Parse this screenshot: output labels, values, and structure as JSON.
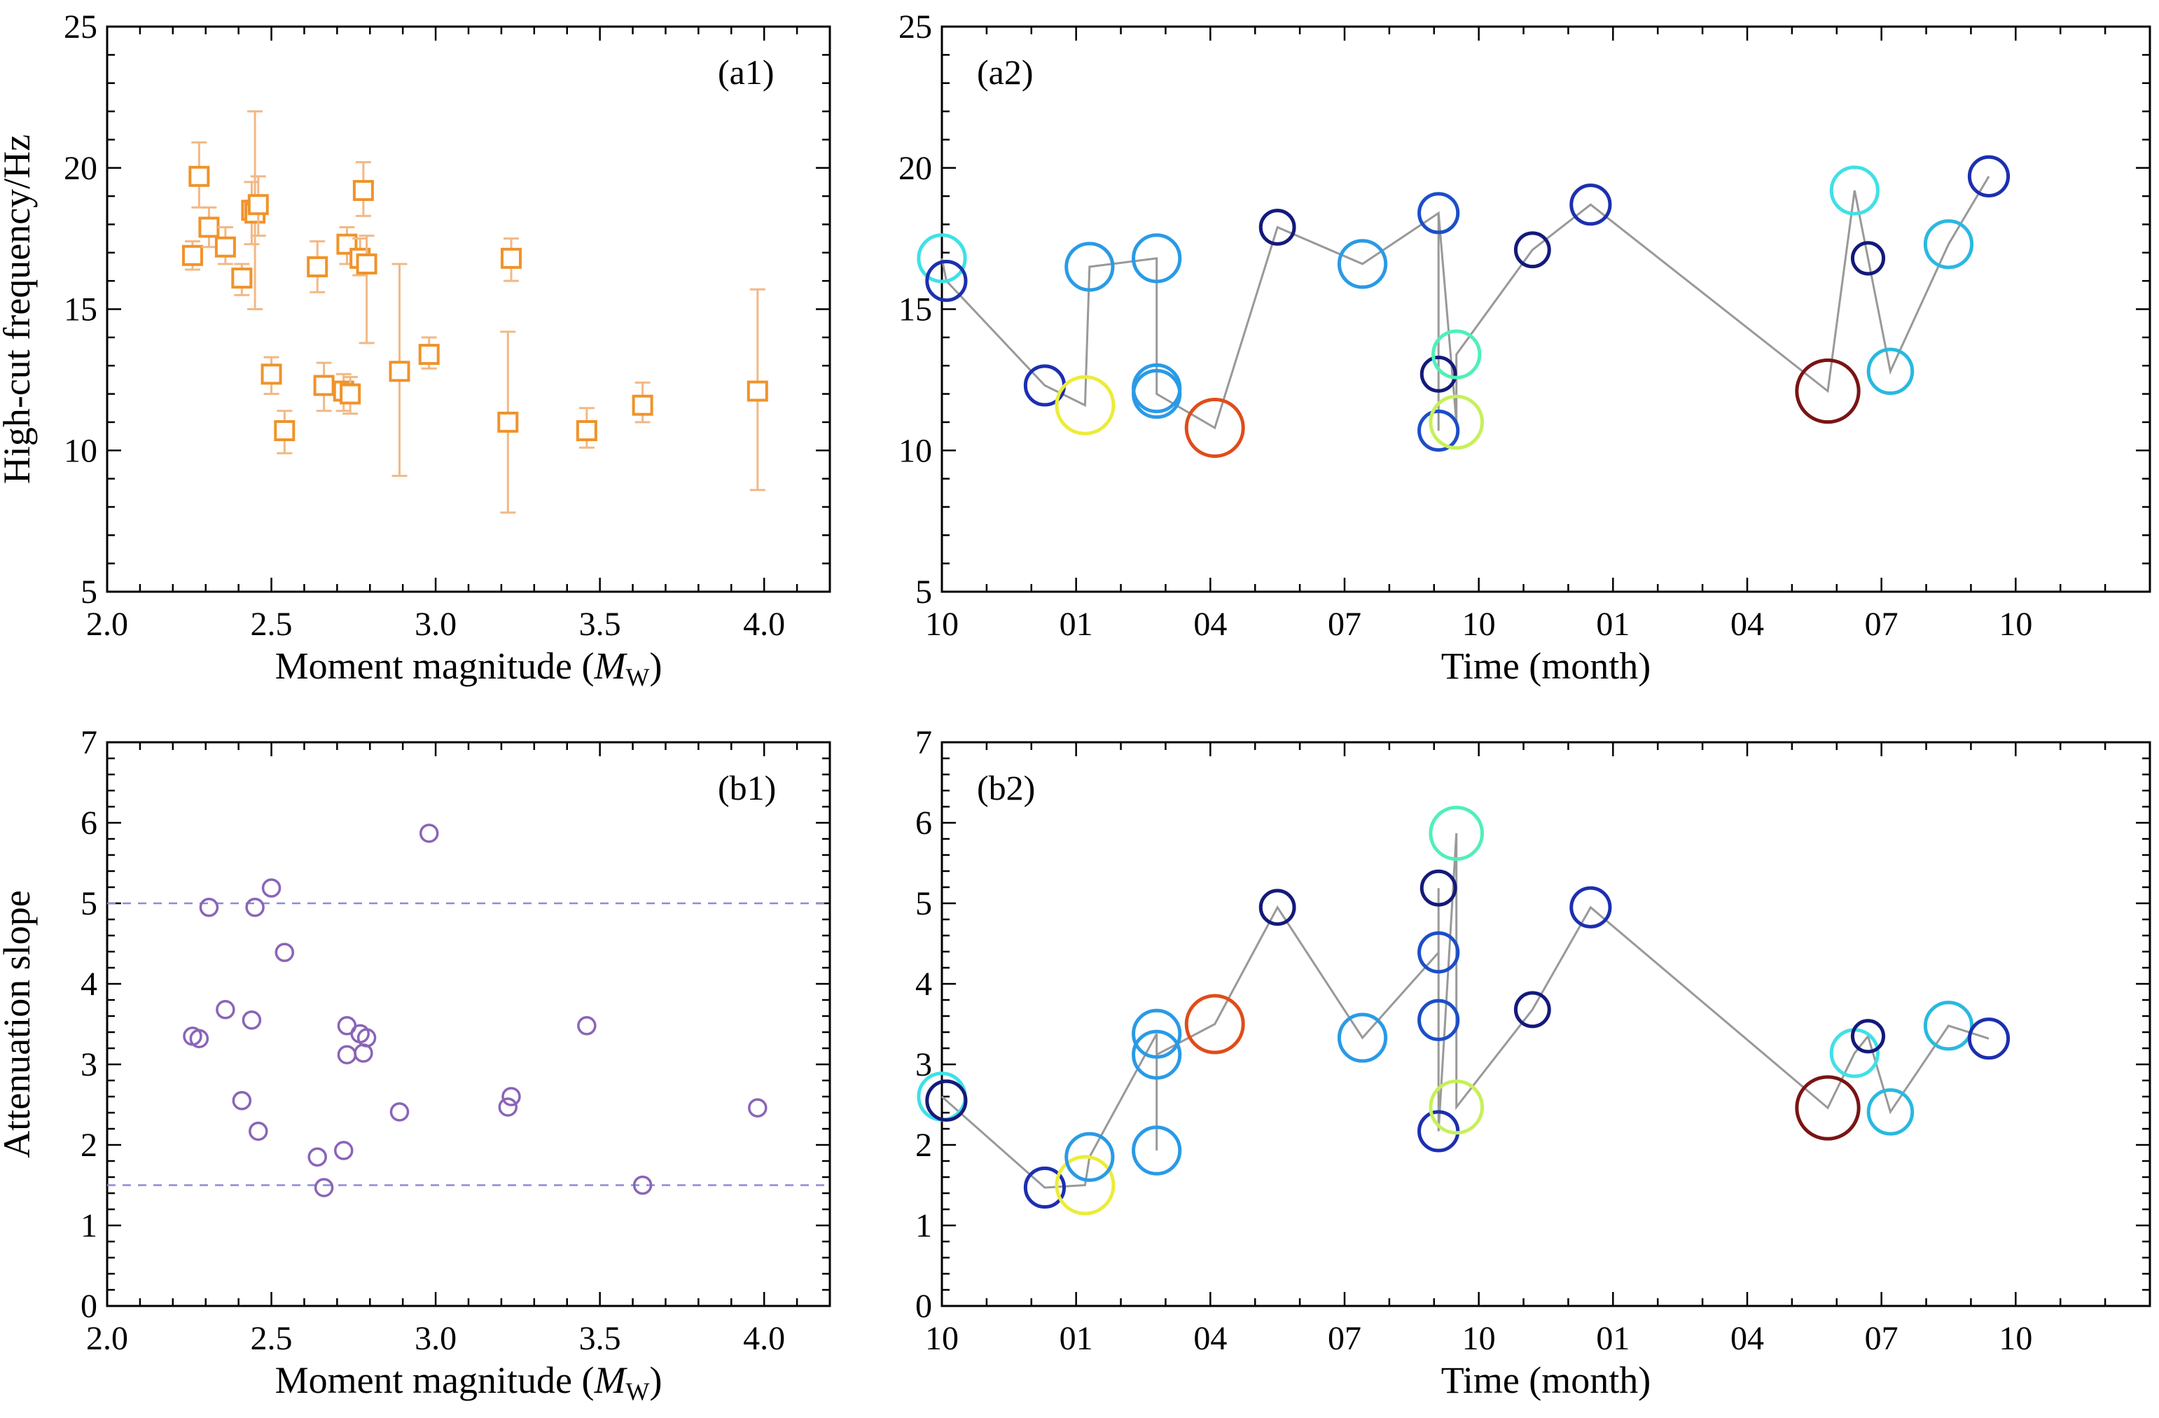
{
  "chart_data": [
    {
      "id": "a1",
      "type": "scatter",
      "panel_label": "(a1)",
      "xlabel": "Moment magnitude (M",
      "xlabel_sub": "W",
      "xlabel_close": ")",
      "ylabel": "High-cut frequency/Hz",
      "xlim": [
        2.0,
        4.2
      ],
      "ylim": [
        5,
        25
      ],
      "xticks": [
        "2.0",
        "2.5",
        "3.0",
        "3.5",
        "4.0"
      ],
      "yticks": [
        "5",
        "10",
        "15",
        "20",
        "25"
      ],
      "marker": "square",
      "color": "#f0932a",
      "errorbar_color": "#f2b885",
      "points": [
        {
          "x": 2.26,
          "y": 16.9,
          "lo": 16.4,
          "hi": 17.4
        },
        {
          "x": 2.28,
          "y": 19.7,
          "lo": 18.6,
          "hi": 20.9
        },
        {
          "x": 2.31,
          "y": 17.9,
          "lo": 17.2,
          "hi": 18.6
        },
        {
          "x": 2.36,
          "y": 17.2,
          "lo": 16.6,
          "hi": 17.9
        },
        {
          "x": 2.41,
          "y": 16.1,
          "lo": 15.5,
          "hi": 16.6
        },
        {
          "x": 2.44,
          "y": 18.5,
          "lo": 17.3,
          "hi": 19.5
        },
        {
          "x": 2.45,
          "y": 18.4,
          "lo": 15.0,
          "hi": 22.0
        },
        {
          "x": 2.46,
          "y": 18.7,
          "lo": 17.6,
          "hi": 19.7
        },
        {
          "x": 2.5,
          "y": 12.7,
          "lo": 12.0,
          "hi": 13.3
        },
        {
          "x": 2.54,
          "y": 10.7,
          "lo": 9.9,
          "hi": 11.4
        },
        {
          "x": 2.64,
          "y": 16.5,
          "lo": 15.6,
          "hi": 17.4
        },
        {
          "x": 2.66,
          "y": 12.3,
          "lo": 11.4,
          "hi": 13.1
        },
        {
          "x": 2.72,
          "y": 12.1,
          "lo": 11.4,
          "hi": 12.7
        },
        {
          "x": 2.73,
          "y": 17.3,
          "lo": 16.6,
          "hi": 17.9
        },
        {
          "x": 2.74,
          "y": 12.0,
          "lo": 11.3,
          "hi": 12.6
        },
        {
          "x": 2.77,
          "y": 16.8,
          "lo": 16.2,
          "hi": 17.5
        },
        {
          "x": 2.78,
          "y": 19.2,
          "lo": 18.3,
          "hi": 20.2
        },
        {
          "x": 2.79,
          "y": 16.6,
          "lo": 13.8,
          "hi": 17.6
        },
        {
          "x": 2.89,
          "y": 12.8,
          "lo": 9.1,
          "hi": 16.6
        },
        {
          "x": 2.98,
          "y": 13.4,
          "lo": 12.9,
          "hi": 14.0
        },
        {
          "x": 3.22,
          "y": 11.0,
          "lo": 7.8,
          "hi": 14.2
        },
        {
          "x": 3.23,
          "y": 16.8,
          "lo": 16.0,
          "hi": 17.5
        },
        {
          "x": 3.46,
          "y": 10.7,
          "lo": 10.1,
          "hi": 11.5
        },
        {
          "x": 3.63,
          "y": 11.6,
          "lo": 11.0,
          "hi": 12.4
        },
        {
          "x": 3.98,
          "y": 12.1,
          "lo": 8.6,
          "hi": 15.7
        }
      ]
    },
    {
      "id": "a2",
      "type": "scatter",
      "panel_label": "(a2)",
      "xlabel": "Time (month)",
      "xlim": [
        0,
        27.0
      ],
      "ylim": [
        5,
        25
      ],
      "xtick_positions": [
        0,
        3,
        6,
        9,
        12,
        15,
        18,
        21,
        24
      ],
      "xticks": [
        "10",
        "01",
        "04",
        "07",
        "10",
        "01",
        "04",
        "07",
        "10"
      ],
      "yticks": [
        "5",
        "10",
        "15",
        "20",
        "25"
      ],
      "line_color": "#999999",
      "points": [
        {
          "t": 0.0,
          "y": 16.8,
          "r": 36,
          "c": "#40e0e6"
        },
        {
          "t": 0.1,
          "y": 16.0,
          "r": 30,
          "c": "#1c2fb0"
        },
        {
          "t": 2.3,
          "y": 12.3,
          "r": 30,
          "c": "#1c2fb0"
        },
        {
          "t": 3.2,
          "y": 11.6,
          "r": 44,
          "c": "#ecec38"
        },
        {
          "t": 3.3,
          "y": 16.5,
          "r": 36,
          "c": "#2a9ae6"
        },
        {
          "t": 4.8,
          "y": 16.8,
          "r": 36,
          "c": "#2a9ae6"
        },
        {
          "t": 4.8,
          "y": 12.2,
          "r": 36,
          "c": "#2a9ae6"
        },
        {
          "t": 4.8,
          "y": 12.0,
          "r": 36,
          "c": "#2a9ae6"
        },
        {
          "t": 6.1,
          "y": 10.8,
          "r": 44,
          "c": "#e04c1a"
        },
        {
          "t": 7.5,
          "y": 17.9,
          "r": 26,
          "c": "#141a7a"
        },
        {
          "t": 9.4,
          "y": 16.6,
          "r": 36,
          "c": "#2a9ae6"
        },
        {
          "t": 11.1,
          "y": 18.4,
          "r": 30,
          "c": "#1c4ec8"
        },
        {
          "t": 11.1,
          "y": 12.7,
          "r": 26,
          "c": "#141a7a"
        },
        {
          "t": 11.1,
          "y": 10.7,
          "r": 30,
          "c": "#1c4ec8"
        },
        {
          "t": 11.5,
          "y": 13.4,
          "r": 36,
          "c": "#4ff0b8"
        },
        {
          "t": 11.5,
          "y": 11.0,
          "r": 40,
          "c": "#c6f05a"
        },
        {
          "t": 13.2,
          "y": 17.1,
          "r": 26,
          "c": "#141a7a"
        },
        {
          "t": 14.5,
          "y": 18.7,
          "r": 30,
          "c": "#1c2fb0"
        },
        {
          "t": 19.8,
          "y": 12.1,
          "r": 48,
          "c": "#7a1414"
        },
        {
          "t": 20.4,
          "y": 19.2,
          "r": 36,
          "c": "#40e0e6"
        },
        {
          "t": 20.7,
          "y": 16.8,
          "r": 24,
          "c": "#141a7a"
        },
        {
          "t": 21.2,
          "y": 12.8,
          "r": 34,
          "c": "#2ab8e0"
        },
        {
          "t": 22.5,
          "y": 17.3,
          "r": 36,
          "c": "#2ab8e0"
        },
        {
          "t": 23.4,
          "y": 19.7,
          "r": 30,
          "c": "#1c2fb0"
        }
      ],
      "path": [
        [
          0.0,
          16.8
        ],
        [
          0.1,
          16.0
        ],
        [
          2.3,
          12.3
        ],
        [
          3.2,
          11.6
        ],
        [
          3.3,
          16.5
        ],
        [
          4.8,
          16.8
        ],
        [
          4.8,
          12.2
        ],
        [
          4.8,
          12.0
        ],
        [
          6.1,
          10.8
        ],
        [
          7.5,
          17.9
        ],
        [
          9.4,
          16.6
        ],
        [
          11.1,
          18.4
        ],
        [
          11.1,
          12.7
        ],
        [
          11.1,
          10.7
        ],
        [
          11.1,
          18.4
        ],
        [
          11.5,
          11.0
        ],
        [
          11.5,
          13.4
        ],
        [
          13.2,
          17.1
        ],
        [
          14.5,
          18.7
        ],
        [
          19.8,
          12.1
        ],
        [
          20.4,
          19.2
        ],
        [
          20.7,
          16.8
        ],
        [
          21.2,
          12.8
        ],
        [
          22.5,
          17.3
        ],
        [
          23.4,
          19.7
        ]
      ]
    },
    {
      "id": "b1",
      "type": "scatter",
      "panel_label": "(b1)",
      "xlabel": "Moment magnitude (M",
      "xlabel_sub": "W",
      "xlabel_close": ")",
      "ylabel": "Attenuation slope",
      "xlim": [
        2.0,
        4.2
      ],
      "ylim": [
        0,
        7
      ],
      "xticks": [
        "2.0",
        "2.5",
        "3.0",
        "3.5",
        "4.0"
      ],
      "yticks": [
        "0",
        "1",
        "2",
        "3",
        "4",
        "5",
        "6",
        "7"
      ],
      "marker": "circle",
      "color": "#8a64b8",
      "reference_lines": [
        5.0,
        1.5
      ],
      "reference_color": "#8c8cd8",
      "points": [
        {
          "x": 2.26,
          "y": 3.35
        },
        {
          "x": 2.28,
          "y": 3.32
        },
        {
          "x": 2.31,
          "y": 4.95
        },
        {
          "x": 2.36,
          "y": 3.68
        },
        {
          "x": 2.41,
          "y": 2.55
        },
        {
          "x": 2.44,
          "y": 3.55
        },
        {
          "x": 2.45,
          "y": 4.95
        },
        {
          "x": 2.46,
          "y": 2.17
        },
        {
          "x": 2.5,
          "y": 5.19
        },
        {
          "x": 2.54,
          "y": 4.39
        },
        {
          "x": 2.64,
          "y": 1.85
        },
        {
          "x": 2.66,
          "y": 1.47
        },
        {
          "x": 2.72,
          "y": 1.93
        },
        {
          "x": 2.73,
          "y": 3.48
        },
        {
          "x": 2.73,
          "y": 3.12
        },
        {
          "x": 2.77,
          "y": 3.38
        },
        {
          "x": 2.78,
          "y": 3.14
        },
        {
          "x": 2.79,
          "y": 3.33
        },
        {
          "x": 2.89,
          "y": 2.41
        },
        {
          "x": 2.98,
          "y": 5.87
        },
        {
          "x": 3.22,
          "y": 2.47
        },
        {
          "x": 3.23,
          "y": 2.6
        },
        {
          "x": 3.46,
          "y": 3.48
        },
        {
          "x": 3.63,
          "y": 1.5
        },
        {
          "x": 3.98,
          "y": 2.46
        }
      ]
    },
    {
      "id": "b2",
      "type": "scatter",
      "panel_label": "(b2)",
      "xlabel": "Time (month)",
      "xlim": [
        0,
        27.0
      ],
      "ylim": [
        0,
        7
      ],
      "xtick_positions": [
        0,
        3,
        6,
        9,
        12,
        15,
        18,
        21,
        24
      ],
      "xticks": [
        "10",
        "01",
        "04",
        "07",
        "10",
        "01",
        "04",
        "07",
        "10"
      ],
      "yticks": [
        "0",
        "1",
        "2",
        "3",
        "4",
        "5",
        "6",
        "7"
      ],
      "line_color": "#999999",
      "points": [
        {
          "t": 0.0,
          "y": 2.6,
          "r": 36,
          "c": "#40e0e6"
        },
        {
          "t": 0.1,
          "y": 2.55,
          "r": 30,
          "c": "#141a7a"
        },
        {
          "t": 2.3,
          "y": 1.47,
          "r": 30,
          "c": "#1c2fb0"
        },
        {
          "t": 3.2,
          "y": 1.5,
          "r": 44,
          "c": "#ecec38"
        },
        {
          "t": 3.3,
          "y": 1.85,
          "r": 36,
          "c": "#2a9ae6"
        },
        {
          "t": 4.8,
          "y": 3.38,
          "r": 36,
          "c": "#2a9ae6"
        },
        {
          "t": 4.8,
          "y": 3.12,
          "r": 36,
          "c": "#2a9ae6"
        },
        {
          "t": 4.8,
          "y": 1.93,
          "r": 36,
          "c": "#2a9ae6"
        },
        {
          "t": 6.1,
          "y": 3.5,
          "r": 44,
          "c": "#e04c1a"
        },
        {
          "t": 7.5,
          "y": 4.95,
          "r": 26,
          "c": "#141a7a"
        },
        {
          "t": 9.4,
          "y": 3.33,
          "r": 36,
          "c": "#2a9ae6"
        },
        {
          "t": 11.1,
          "y": 5.19,
          "r": 26,
          "c": "#141a7a"
        },
        {
          "t": 11.1,
          "y": 4.39,
          "r": 30,
          "c": "#1c4ec8"
        },
        {
          "t": 11.1,
          "y": 3.55,
          "r": 30,
          "c": "#1c4ec8"
        },
        {
          "t": 11.1,
          "y": 2.17,
          "r": 30,
          "c": "#1c2fb0"
        },
        {
          "t": 11.5,
          "y": 5.87,
          "r": 40,
          "c": "#4ff0b8"
        },
        {
          "t": 11.5,
          "y": 2.47,
          "r": 40,
          "c": "#c6f05a"
        },
        {
          "t": 13.2,
          "y": 3.68,
          "r": 26,
          "c": "#141a7a"
        },
        {
          "t": 14.5,
          "y": 4.95,
          "r": 30,
          "c": "#1c2fb0"
        },
        {
          "t": 19.8,
          "y": 2.46,
          "r": 48,
          "c": "#7a1414"
        },
        {
          "t": 20.4,
          "y": 3.14,
          "r": 36,
          "c": "#40e0e6"
        },
        {
          "t": 20.7,
          "y": 3.35,
          "r": 24,
          "c": "#141a7a"
        },
        {
          "t": 21.2,
          "y": 2.41,
          "r": 34,
          "c": "#2ab8e0"
        },
        {
          "t": 22.5,
          "y": 3.48,
          "r": 36,
          "c": "#2ab8e0"
        },
        {
          "t": 23.4,
          "y": 3.32,
          "r": 30,
          "c": "#1c2fb0"
        }
      ],
      "path": [
        [
          0.0,
          2.6
        ],
        [
          0.1,
          2.55
        ],
        [
          2.3,
          1.47
        ],
        [
          3.2,
          1.5
        ],
        [
          3.3,
          1.85
        ],
        [
          4.8,
          3.38
        ],
        [
          4.8,
          3.12
        ],
        [
          4.8,
          1.93
        ],
        [
          4.8,
          3.12
        ],
        [
          6.1,
          3.5
        ],
        [
          7.5,
          4.95
        ],
        [
          9.4,
          3.33
        ],
        [
          11.1,
          4.39
        ],
        [
          11.1,
          5.19
        ],
        [
          11.1,
          3.55
        ],
        [
          11.1,
          2.17
        ],
        [
          11.5,
          5.87
        ],
        [
          11.5,
          2.47
        ],
        [
          13.2,
          3.68
        ],
        [
          14.5,
          4.95
        ],
        [
          19.8,
          2.46
        ],
        [
          20.4,
          3.14
        ],
        [
          20.7,
          3.35
        ],
        [
          21.2,
          2.41
        ],
        [
          22.5,
          3.48
        ],
        [
          23.4,
          3.32
        ]
      ]
    }
  ]
}
